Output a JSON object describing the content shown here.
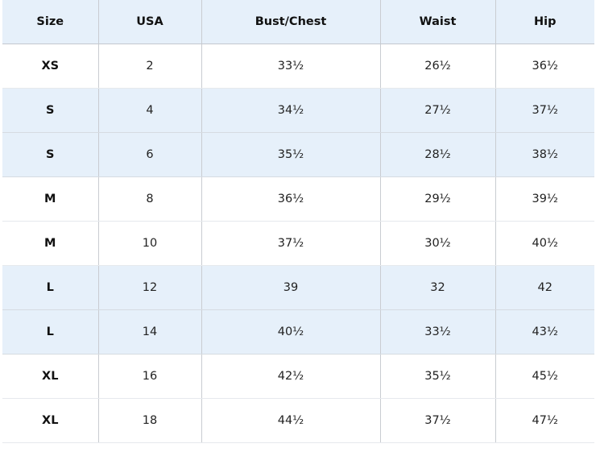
{
  "table": {
    "headers": [
      "Size",
      "USA",
      "Bust/Chest",
      "Waist",
      "Hip"
    ],
    "rows": [
      {
        "size": "XS",
        "usa": "2",
        "bust": "33½",
        "waist": "26½",
        "hip": "36½",
        "shaded": false
      },
      {
        "size": "S",
        "usa": "4",
        "bust": "34½",
        "waist": "27½",
        "hip": "37½",
        "shaded": true
      },
      {
        "size": "S",
        "usa": "6",
        "bust": "35½",
        "waist": "28½",
        "hip": "38½",
        "shaded": true
      },
      {
        "size": "M",
        "usa": "8",
        "bust": "36½",
        "waist": "29½",
        "hip": "39½",
        "shaded": false
      },
      {
        "size": "M",
        "usa": "10",
        "bust": "37½",
        "waist": "30½",
        "hip": "40½",
        "shaded": false
      },
      {
        "size": "L",
        "usa": "12",
        "bust": "39",
        "waist": "32",
        "hip": "42",
        "shaded": true
      },
      {
        "size": "L",
        "usa": "14",
        "bust": "40½",
        "waist": "33½",
        "hip": "43½",
        "shaded": true
      },
      {
        "size": "XL",
        "usa": "16",
        "bust": "42½",
        "waist": "35½",
        "hip": "45½",
        "shaded": false
      },
      {
        "size": "XL",
        "usa": "18",
        "bust": "44½",
        "waist": "37½",
        "hip": "47½",
        "shaded": false
      }
    ]
  },
  "colors": {
    "header_bg": "#e6f0fa",
    "shaded_row_bg": "#e6f0fa",
    "plain_row_bg": "#ffffff"
  }
}
